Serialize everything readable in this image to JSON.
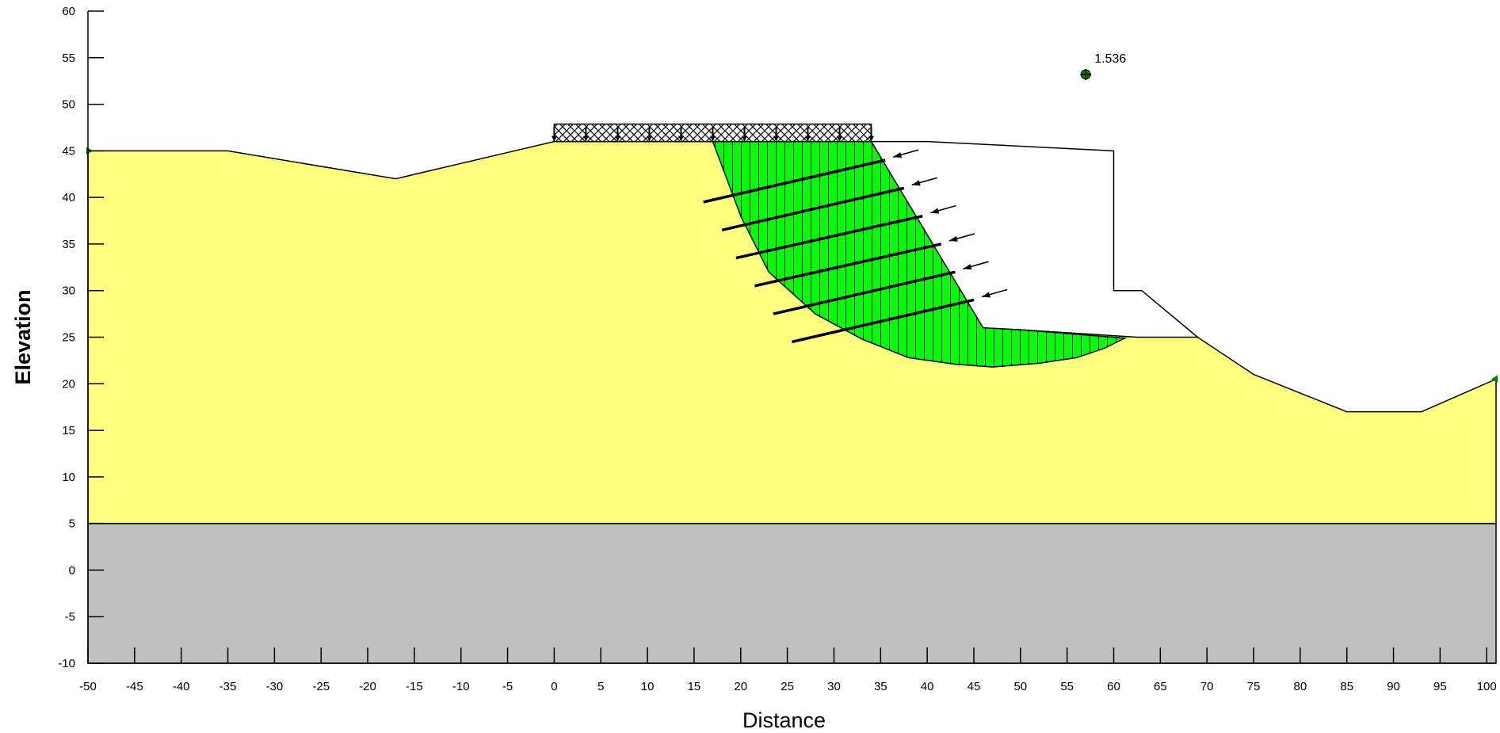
{
  "axes": {
    "x_label": "Distance",
    "y_label": "Elevation",
    "x_range": [
      -50,
      101
    ],
    "y_range": [
      -10,
      60
    ],
    "x_ticks": [
      -50,
      -45,
      -40,
      -35,
      -30,
      -25,
      -20,
      -15,
      -10,
      -5,
      0,
      5,
      10,
      15,
      20,
      25,
      30,
      35,
      40,
      45,
      50,
      55,
      60,
      65,
      70,
      75,
      80,
      85,
      90,
      95,
      100
    ],
    "y_ticks": [
      60,
      55,
      50,
      45,
      40,
      35,
      30,
      25,
      20,
      15,
      10,
      5,
      0,
      -5,
      -10
    ]
  },
  "colors": {
    "upper_soil": "#ffff80",
    "lower_soil": "#c0c0c0",
    "slip_mass": "#00ff00",
    "outline": "#000000",
    "center_marker": "#008000",
    "background": "#ffffff"
  },
  "slip_surface": {
    "factor_of_safety": "1.536",
    "center": [
      57,
      53.2
    ]
  },
  "layers": {
    "lower_top_elevation": 5,
    "upper_ground_profile": [
      [
        -50,
        45
      ],
      [
        -35,
        45
      ],
      [
        -17,
        42
      ],
      [
        0,
        46
      ],
      [
        17,
        46
      ],
      [
        34,
        46
      ],
      [
        46,
        26
      ],
      [
        50,
        25.8
      ],
      [
        62.5,
        25
      ],
      [
        69,
        25
      ],
      [
        75,
        21
      ],
      [
        85,
        17
      ],
      [
        93,
        17
      ],
      [
        101,
        20.5
      ]
    ],
    "excavation_outline": [
      [
        34,
        46
      ],
      [
        40,
        46
      ],
      [
        60,
        45
      ],
      [
        60,
        30
      ],
      [
        63,
        30
      ],
      [
        69,
        25
      ]
    ]
  },
  "surcharge_load": {
    "x_start": 0,
    "x_end": 34,
    "elevation": 46
  },
  "anchors": [
    {
      "head": [
        35.5,
        44
      ],
      "end": [
        16,
        39.5
      ]
    },
    {
      "head": [
        37.5,
        41
      ],
      "end": [
        18,
        36.5
      ]
    },
    {
      "head": [
        39.5,
        38
      ],
      "end": [
        19.5,
        33.5
      ]
    },
    {
      "head": [
        41.5,
        35
      ],
      "end": [
        21.5,
        30.5
      ]
    },
    {
      "head": [
        43,
        32
      ],
      "end": [
        23.5,
        27.5
      ]
    },
    {
      "head": [
        45,
        29
      ],
      "end": [
        25.5,
        24.5
      ]
    }
  ],
  "slip_mass_outline": {
    "failure_arc": [
      [
        17,
        46
      ],
      [
        20,
        38
      ],
      [
        23,
        32
      ],
      [
        28,
        27.5
      ],
      [
        33,
        24.8
      ],
      [
        38,
        22.8
      ],
      [
        43,
        22.1
      ],
      [
        47,
        21.8
      ],
      [
        52,
        22.2
      ],
      [
        56,
        22.8
      ],
      [
        59,
        23.8
      ],
      [
        61.2,
        24.9
      ]
    ],
    "surface": [
      [
        61.2,
        24.9
      ],
      [
        50,
        25.8
      ],
      [
        46,
        26
      ],
      [
        34,
        46
      ],
      [
        17,
        46
      ]
    ]
  }
}
